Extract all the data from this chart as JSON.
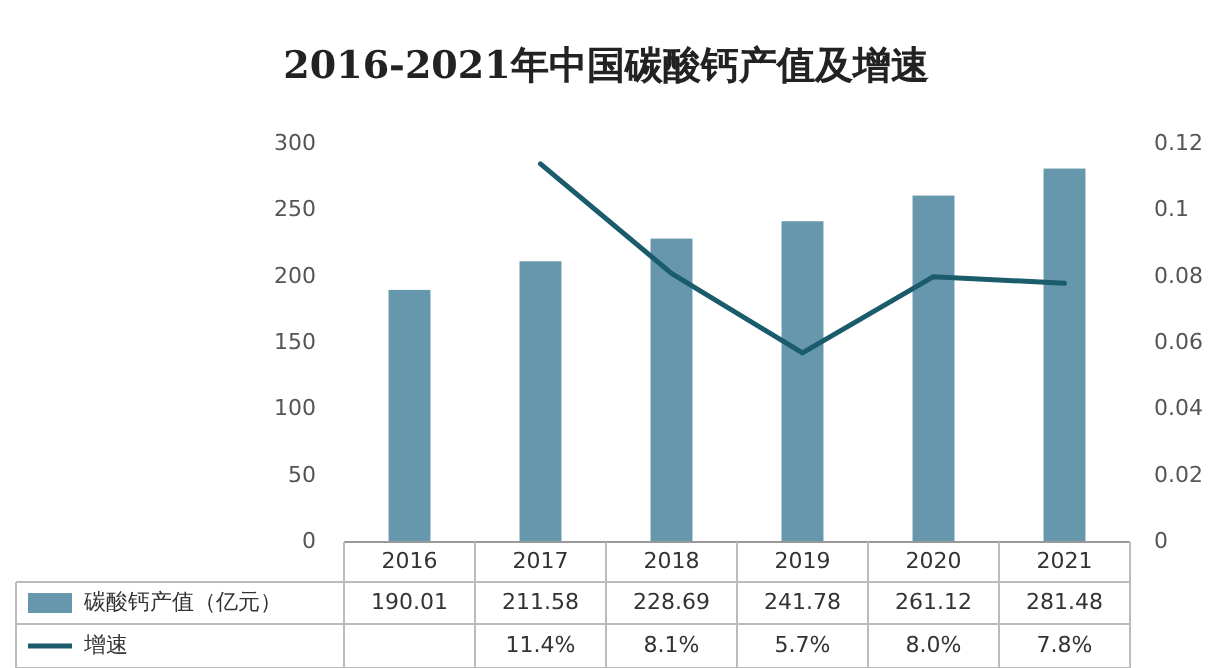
{
  "chart_data": {
    "type": "bar",
    "title": "2016-2021年中国碳酸钙产值及增速",
    "categories": [
      "2016",
      "2017",
      "2018",
      "2019",
      "2020",
      "2021"
    ],
    "series": [
      {
        "name": "碳酸钙产值（亿元）",
        "color": "#6797ac",
        "values": [
          190.01,
          211.58,
          228.69,
          241.78,
          261.12,
          281.48
        ],
        "value_labels": [
          "190.01",
          "211.58",
          "228.69",
          "241.78",
          "261.12",
          "281.48"
        ]
      },
      {
        "name": "增速",
        "type": "line",
        "axis": "y2",
        "color": "#1a5c6c",
        "values": [
          null,
          0.114,
          0.081,
          0.057,
          0.08,
          0.078
        ],
        "value_labels": [
          null,
          "11.4%",
          "8.1%",
          "5.7%",
          "8.0%",
          "7.8%"
        ]
      }
    ],
    "ylim": [
      0,
      300
    ],
    "yticks": [
      0,
      50,
      100,
      150,
      200,
      250,
      300
    ],
    "y2lim": [
      0,
      0.12
    ],
    "y2ticks": [
      0,
      0.02,
      0.04,
      0.06,
      0.08,
      0.1,
      0.12
    ],
    "legend": "bottom left"
  }
}
